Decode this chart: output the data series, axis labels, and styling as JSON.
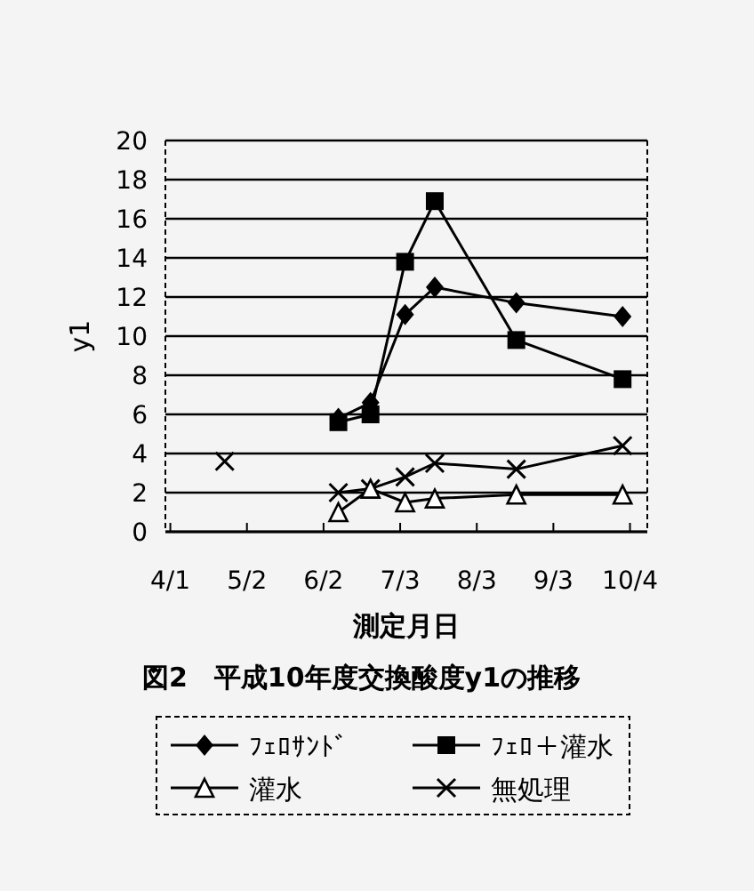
{
  "chart_data": {
    "type": "line",
    "title": "図2　平成10年度交換酸度y1の推移",
    "xlabel": "測定月日",
    "ylabel": "y1",
    "x": [
      "--06-08",
      "--06-21",
      "--07-05",
      "--07-17",
      "--08-19",
      "--10-01"
    ],
    "xlim": [
      "--03-30",
      "--10-11"
    ],
    "xticks": [
      {
        "value": "--04-01",
        "label": "4/1"
      },
      {
        "value": "--05-02",
        "label": "5/2"
      },
      {
        "value": "--06-02",
        "label": "6/2"
      },
      {
        "value": "--07-03",
        "label": "7/3"
      },
      {
        "value": "--08-03",
        "label": "8/3"
      },
      {
        "value": "--09-03",
        "label": "9/3"
      },
      {
        "value": "--10-04",
        "label": "10/4"
      }
    ],
    "ylim": [
      0,
      20
    ],
    "yticks": [
      0,
      2,
      4,
      6,
      8,
      10,
      12,
      14,
      16,
      18,
      20
    ],
    "grid": "y",
    "legend": "bottom",
    "series": [
      {
        "name": "ﾌｪﾛｻﾝﾄﾞ",
        "color": "#000000",
        "marker": "diamond",
        "values": [
          5.8,
          6.6,
          11.1,
          12.5,
          11.7,
          11.0
        ]
      },
      {
        "name": "ﾌｪﾛ＋灌水",
        "color": "#000000",
        "marker": "square",
        "values": [
          5.6,
          6.0,
          13.8,
          16.9,
          9.8,
          7.8
        ]
      },
      {
        "name": "灌水",
        "color": "#000000",
        "marker": "triangle",
        "values": [
          1.0,
          2.2,
          1.5,
          1.7,
          1.9,
          1.9
        ]
      },
      {
        "name": "無処理",
        "color": "#000000",
        "marker": "cross",
        "values": [
          2.0,
          2.2,
          2.8,
          3.5,
          3.2,
          4.4
        ]
      },
      {
        "type": "scatter",
        "color": "#000000",
        "marker": "cross",
        "x": [
          "--04-23"
        ],
        "values": [
          3.6
        ]
      }
    ]
  }
}
